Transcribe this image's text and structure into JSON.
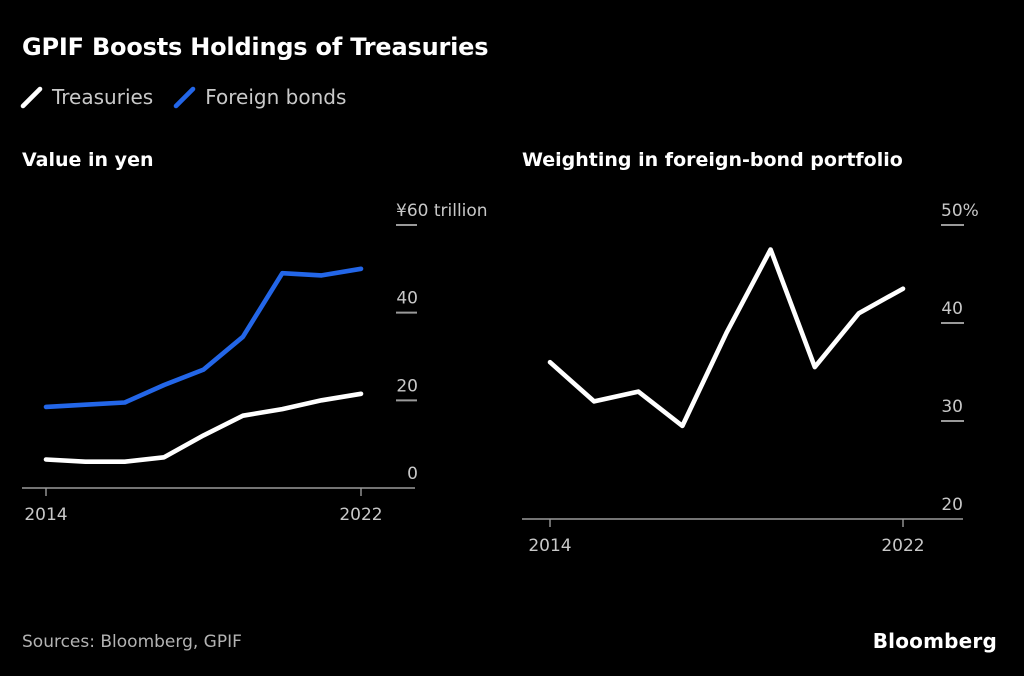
{
  "title": "GPIF Boosts Holdings of Treasuries",
  "legend": {
    "items": [
      {
        "label": "Treasuries",
        "color": "#ffffff"
      },
      {
        "label": "Foreign bonds",
        "color": "#2366e8"
      }
    ]
  },
  "footer": {
    "sources": "Sources: Bloomberg, GPIF",
    "brand": "Bloomberg"
  },
  "colors": {
    "background": "#000000",
    "title_text": "#ffffff",
    "legend_text": "#c9c9c9",
    "tick_label": "#c8c8c8",
    "axis": "#9a9a9a",
    "treasuries_line": "#ffffff",
    "foreign_bonds_line": "#2366e8",
    "sources_text": "#b3b3b3"
  },
  "chart_data": [
    {
      "type": "line",
      "title": "Value in yen",
      "x": [
        2014,
        2015,
        2016,
        2017,
        2018,
        2019,
        2020,
        2021,
        2022
      ],
      "series": [
        {
          "name": "Treasuries",
          "color": "#ffffff",
          "values": [
            6.5,
            6,
            6,
            7,
            12,
            16.5,
            18,
            20,
            21.5
          ]
        },
        {
          "name": "Foreign bonds",
          "color": "#2366e8",
          "values": [
            18.5,
            19,
            19.5,
            23.5,
            27,
            34.5,
            49,
            48.5,
            50
          ]
        }
      ],
      "ylim": [
        0,
        60
      ],
      "yticks": [
        {
          "value": 0,
          "label": "0"
        },
        {
          "value": 20,
          "label": "20"
        },
        {
          "value": 40,
          "label": "40"
        },
        {
          "value": 60,
          "label": "¥60 trillion"
        }
      ],
      "xticks": [
        {
          "value": 2014,
          "label": "2014"
        },
        {
          "value": 2022,
          "label": "2022"
        }
      ],
      "grid": false,
      "legend_position": "top",
      "y_axis_side": "right"
    },
    {
      "type": "line",
      "title": "Weighting in foreign-bond portfolio",
      "x": [
        2014,
        2015,
        2016,
        2017,
        2018,
        2019,
        2020,
        2021,
        2022
      ],
      "series": [
        {
          "name": "Treasuries weighting",
          "color": "#ffffff",
          "values": [
            36,
            32,
            33,
            29.5,
            39,
            47.5,
            35.5,
            41,
            43.5
          ]
        }
      ],
      "ylim": [
        20,
        50
      ],
      "yticks": [
        {
          "value": 20,
          "label": "20"
        },
        {
          "value": 30,
          "label": "30"
        },
        {
          "value": 40,
          "label": "40"
        },
        {
          "value": 50,
          "label": "50%"
        }
      ],
      "xticks": [
        {
          "value": 2014,
          "label": "2014"
        },
        {
          "value": 2022,
          "label": "2022"
        }
      ],
      "grid": false,
      "legend_position": "none",
      "y_axis_side": "right"
    }
  ]
}
